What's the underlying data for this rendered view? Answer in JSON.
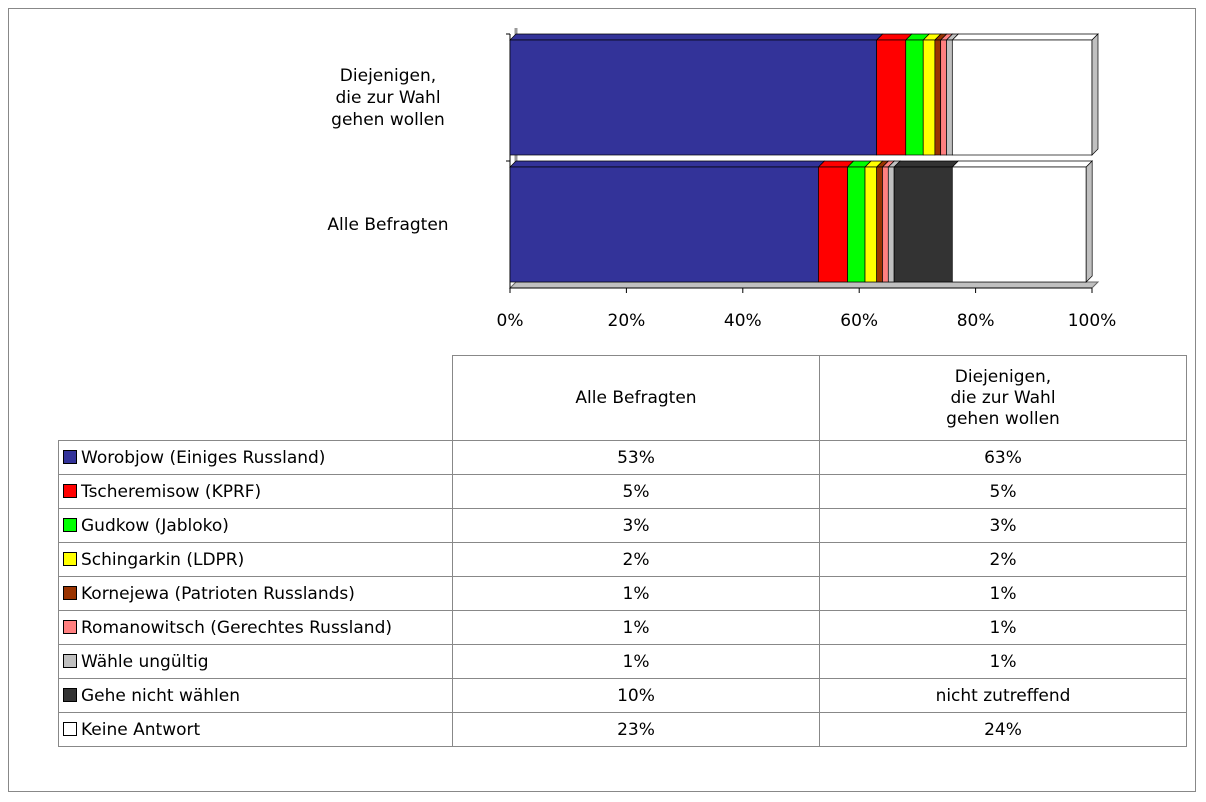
{
  "chart_data": {
    "type": "bar",
    "orientation": "horizontal",
    "stacked": true,
    "categories": [
      "Alle Befragten",
      "Diejenigen,\ndie zur Wahl\ngehen wollen"
    ],
    "series": [
      {
        "name": "Worobjow (Einiges Russland)",
        "color": "#333399",
        "values": [
          53,
          63
        ],
        "value_labels": [
          "53%",
          "63%"
        ]
      },
      {
        "name": "Tscheremisow (KPRF)",
        "color": "#ff0000",
        "values": [
          5,
          5
        ],
        "value_labels": [
          "5%",
          "5%"
        ]
      },
      {
        "name": "Gudkow (Jabloko)",
        "color": "#00ff00",
        "values": [
          3,
          3
        ],
        "value_labels": [
          "3%",
          "3%"
        ]
      },
      {
        "name": "Schingarkin (LDPR)",
        "color": "#ffff00",
        "values": [
          2,
          2
        ],
        "value_labels": [
          "2%",
          "2%"
        ]
      },
      {
        "name": "Kornejewa (Patrioten Russlands)",
        "color": "#993300",
        "values": [
          1,
          1
        ],
        "value_labels": [
          "1%",
          "1%"
        ]
      },
      {
        "name": "Romanowitsch (Gerechtes Russland)",
        "color": "#ff8080",
        "values": [
          1,
          1
        ],
        "value_labels": [
          "1%",
          "1%"
        ]
      },
      {
        "name": "Wähle ungültig",
        "color": "#c0c0c0",
        "values": [
          1,
          1
        ],
        "value_labels": [
          "1%",
          "1%"
        ]
      },
      {
        "name": "Gehe nicht wählen",
        "color": "#333333",
        "values": [
          10,
          null
        ],
        "value_labels": [
          "10%",
          "nicht zutreffend"
        ]
      },
      {
        "name": "Keine Antwort",
        "color": "#ffffff",
        "values": [
          23,
          24
        ],
        "value_labels": [
          "23%",
          "24%"
        ]
      }
    ],
    "xlim": [
      0,
      100
    ],
    "xticks": [
      {
        "value": 0,
        "label": "0%"
      },
      {
        "value": 20,
        "label": "20%"
      },
      {
        "value": 40,
        "label": "40%"
      },
      {
        "value": 60,
        "label": "60%"
      },
      {
        "value": 80,
        "label": "80%"
      },
      {
        "value": 100,
        "label": "100%"
      }
    ]
  }
}
